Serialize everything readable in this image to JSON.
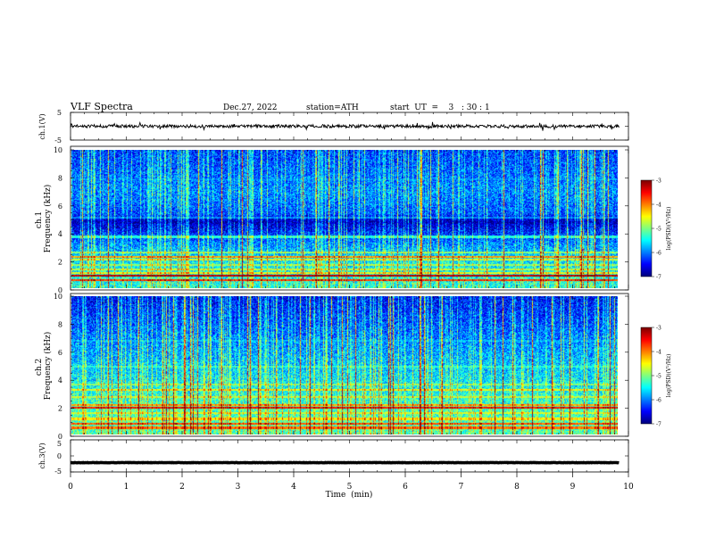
{
  "header": {
    "title": "VLF  Spectra",
    "date": "Dec.27, 2022",
    "station": "station=ATH",
    "start_ut": "start  UT  =    3   : 30 : 1"
  },
  "chart_data": [
    {
      "id": "ch1-waveform",
      "type": "line",
      "ylabel": "ch.1(V)",
      "ylim": [
        -5,
        5
      ],
      "yticks": [
        "5",
        "-5"
      ],
      "xlim": [
        0,
        10
      ],
      "data_end_min": 9.83,
      "baseline": 0,
      "noise_amplitude": 0.55,
      "spike_amplitude": 1.6,
      "color": "#000000"
    },
    {
      "id": "ch1-spectrogram",
      "type": "heatmap",
      "ylabel": "ch.1\nFrequency  (kHz)",
      "ylim": [
        0,
        10
      ],
      "yticks": [
        "10",
        "8",
        "6",
        "4",
        "2",
        "0"
      ],
      "xlim": [
        0,
        10
      ],
      "data_end_min": 9.83,
      "colorbar": {
        "label": "log(PSD)(V²/Hz)",
        "range": [
          -7,
          -3
        ],
        "ticks": [
          "-3",
          "-4",
          "-5",
          "-6",
          "-7"
        ]
      },
      "bands_khz": [
        {
          "f": 0.55,
          "level": -3.8
        },
        {
          "f": 0.85,
          "level": -3.3
        },
        {
          "f": 1.05,
          "level": -4.6
        },
        {
          "f": 1.35,
          "level": -4.8
        },
        {
          "f": 1.65,
          "level": -4.9
        },
        {
          "f": 2.05,
          "level": -4.7
        },
        {
          "f": 2.25,
          "level": -4.2
        },
        {
          "f": 2.55,
          "level": -5.0
        },
        {
          "f": 3.7,
          "level": -5.4
        },
        {
          "f": 4.6,
          "level": -6.9
        },
        {
          "f": 5.1,
          "level": -6.0
        },
        {
          "f": 7.9,
          "level": -6.1
        }
      ],
      "background_profile": [
        {
          "f": 0,
          "level": -5.4
        },
        {
          "f": 2,
          "level": -5.6
        },
        {
          "f": 3.2,
          "level": -6.0
        },
        {
          "f": 4.2,
          "level": -6.5
        },
        {
          "f": 4.8,
          "level": -6.9
        },
        {
          "f": 5.4,
          "level": -6.2
        },
        {
          "f": 7,
          "level": -6.0
        },
        {
          "f": 10,
          "level": -6.3
        }
      ],
      "sferic_density": 0.42
    },
    {
      "id": "ch2-spectrogram",
      "type": "heatmap",
      "ylabel": "ch.2\nFrequency  (kHz)",
      "ylim": [
        0,
        10
      ],
      "yticks": [
        "10",
        "8",
        "6",
        "4",
        "2",
        "0"
      ],
      "xlim": [
        0,
        10
      ],
      "data_end_min": 9.83,
      "colorbar": {
        "label": "log(PSD)(V²/Hz)",
        "range": [
          -7,
          -3
        ],
        "ticks": [
          "-3",
          "-4",
          "-5",
          "-6",
          "-7"
        ]
      },
      "bands_khz": [
        {
          "f": 0.45,
          "level": -4.0
        },
        {
          "f": 0.75,
          "level": -3.9
        },
        {
          "f": 1.1,
          "level": -4.5
        },
        {
          "f": 1.5,
          "level": -4.7
        },
        {
          "f": 1.9,
          "level": -3.6
        },
        {
          "f": 2.1,
          "level": -4.2
        },
        {
          "f": 2.7,
          "level": -4.8
        },
        {
          "f": 3.2,
          "level": -4.6
        },
        {
          "f": 3.6,
          "level": -5.0
        },
        {
          "f": 4.9,
          "level": -5.4
        },
        {
          "f": 6.8,
          "level": -5.9
        }
      ],
      "background_profile": [
        {
          "f": 0,
          "level": -5.2
        },
        {
          "f": 2,
          "level": -5.3
        },
        {
          "f": 4,
          "level": -5.6
        },
        {
          "f": 6,
          "level": -5.9
        },
        {
          "f": 8,
          "level": -6.2
        },
        {
          "f": 10,
          "level": -6.5
        }
      ],
      "sferic_density": 0.4
    },
    {
      "id": "ch3-waveform",
      "type": "line",
      "ylabel": "ch.3(V)",
      "ylim": [
        -5,
        5
      ],
      "yticks": [
        "5",
        "0",
        "-5"
      ],
      "xlim": [
        0,
        10
      ],
      "data_end_min": 9.83,
      "baseline": -2.1,
      "noise_amplitude": 0.05,
      "spike_amplitude": 0,
      "color": "#000000"
    }
  ],
  "x_axis": {
    "label": "Time  (min)",
    "ticks": [
      "0",
      "1",
      "2",
      "3",
      "4",
      "5",
      "6",
      "7",
      "8",
      "9",
      "10"
    ]
  }
}
